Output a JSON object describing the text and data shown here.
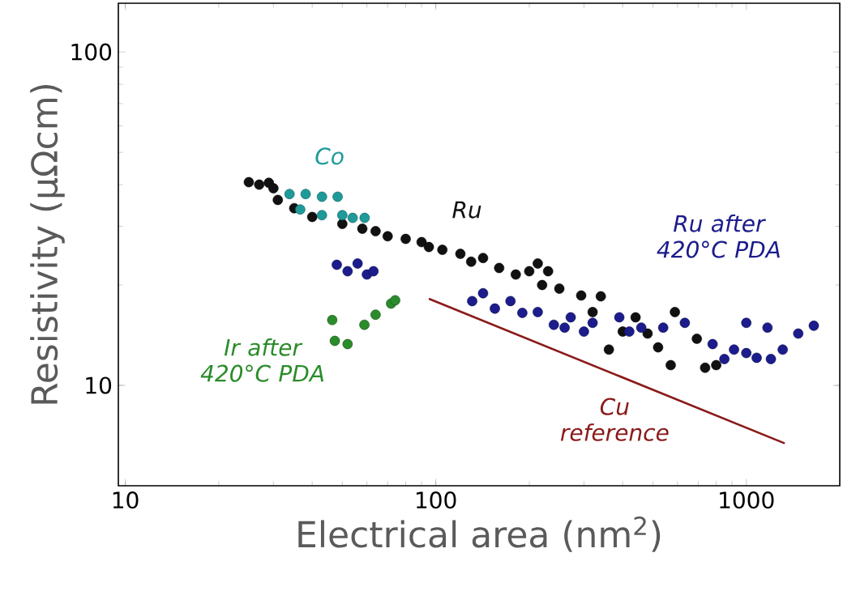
{
  "chart_data": {
    "type": "scatter",
    "xlabel": "Electrical area (nm$^{2}$)",
    "ylabel": "Resistivity (µΩcm)",
    "log": "xy",
    "grid": false,
    "legend": false,
    "marker": "circle",
    "xlim": [
      9.5,
      2000
    ],
    "ylim": [
      5,
      140
    ],
    "xticks": [
      10,
      100,
      1000
    ],
    "yticks": [
      10,
      100
    ],
    "series": [
      {
        "name": "Ru",
        "color": "#111111",
        "x": [
          25,
          27,
          29,
          30,
          31,
          35,
          40,
          43,
          50,
          58,
          64,
          70,
          80,
          90,
          95,
          105,
          120,
          130,
          142,
          160,
          181,
          200,
          213,
          220,
          230,
          250,
          294,
          320,
          340,
          361,
          400,
          440,
          481,
          520,
          571,
          589,
          620,
          693,
          737,
          800
        ],
        "values": [
          40.7,
          40,
          40.5,
          39,
          36,
          34,
          32,
          null,
          30.5,
          29.5,
          29,
          28,
          27.5,
          26.9,
          26,
          25.5,
          24.8,
          23.5,
          24.1,
          22.5,
          21.5,
          22,
          23.2,
          20,
          22,
          19.5,
          18.6,
          16.6,
          18.5,
          12.8,
          14.5,
          16,
          14.3,
          13,
          11.5,
          16.6,
          null,
          13.8,
          11.3,
          11.5
        ]
      },
      {
        "name": "Co",
        "color": "#1f9a9a",
        "x": [
          33.8,
          38.1,
          43,
          48.3,
          36.6,
          43,
          50,
          54,
          59
        ],
        "values": [
          37.5,
          37.5,
          36.8,
          36.8,
          33.7,
          32.4,
          32.4,
          31.8,
          31.8
        ]
      },
      {
        "name": "Ru after 420°C PDA",
        "color": "#1c1c8c",
        "x": [
          48,
          52,
          56,
          60,
          63,
          131,
          142,
          155,
          174,
          190,
          213,
          240,
          260,
          272,
          300,
          320,
          390,
          420,
          459,
          540,
          634,
          779,
          850,
          913,
          1000,
          1000,
          1080,
          1170,
          1200,
          1310,
          1470,
          1650
        ],
        "values": [
          23,
          22,
          23.2,
          21.5,
          22,
          17.9,
          18.9,
          17,
          17.9,
          16.5,
          16.6,
          15.2,
          14.9,
          16,
          14.5,
          15.4,
          16,
          14.5,
          14.9,
          14.9,
          15.4,
          13.3,
          12,
          12.8,
          15.4,
          12.5,
          12.1,
          14.9,
          12,
          12.8,
          14.3,
          15.1
        ]
      },
      {
        "name": "Ir after 420°C PDA",
        "color": "#2a8c2a",
        "x": [
          46.4,
          47.3,
          52,
          58.9,
          64,
          71.8,
          74
        ],
        "values": [
          15.7,
          13.6,
          13.3,
          15.2,
          16.3,
          17.6,
          18
        ]
      },
      {
        "name": "Cu reference",
        "type": "line",
        "color": "#8b1a1a",
        "marker": "none",
        "x": [
          95,
          1330
        ],
        "values": [
          18.2,
          6.7
        ]
      }
    ]
  }
}
